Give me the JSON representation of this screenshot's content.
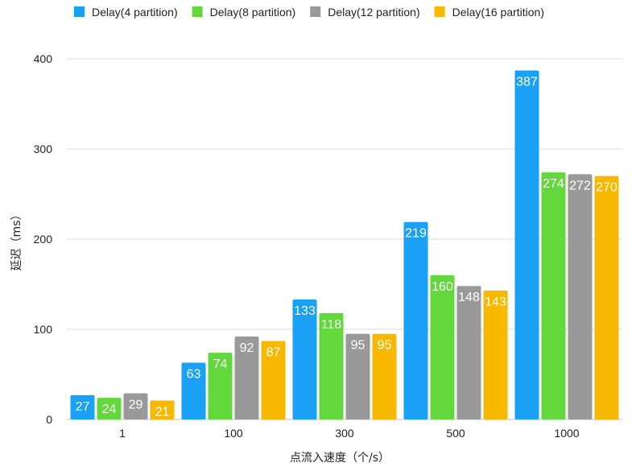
{
  "chart_data": {
    "type": "bar",
    "categories": [
      "1",
      "100",
      "300",
      "500",
      "1000"
    ],
    "series": [
      {
        "name": "Delay(4 partition)",
        "color": "#1aa1f5",
        "values": [
          27,
          63,
          133,
          219,
          387
        ]
      },
      {
        "name": "Delay(8 partition)",
        "color": "#63d83d",
        "values": [
          24,
          74,
          118,
          160,
          274
        ]
      },
      {
        "name": "Delay(12 partition)",
        "color": "#999999",
        "values": [
          29,
          92,
          95,
          148,
          272
        ]
      },
      {
        "name": "Delay(16 partition)",
        "color": "#f8b800",
        "values": [
          21,
          87,
          95,
          143,
          270
        ]
      }
    ],
    "xlabel": "点流入速度（个/s）",
    "ylabel": "延迟（ms）",
    "ylim": [
      0,
      400
    ],
    "yticks": [
      0,
      100,
      200,
      300,
      400
    ],
    "grid": true,
    "legend_position": "top-left",
    "data_labels": true
  }
}
